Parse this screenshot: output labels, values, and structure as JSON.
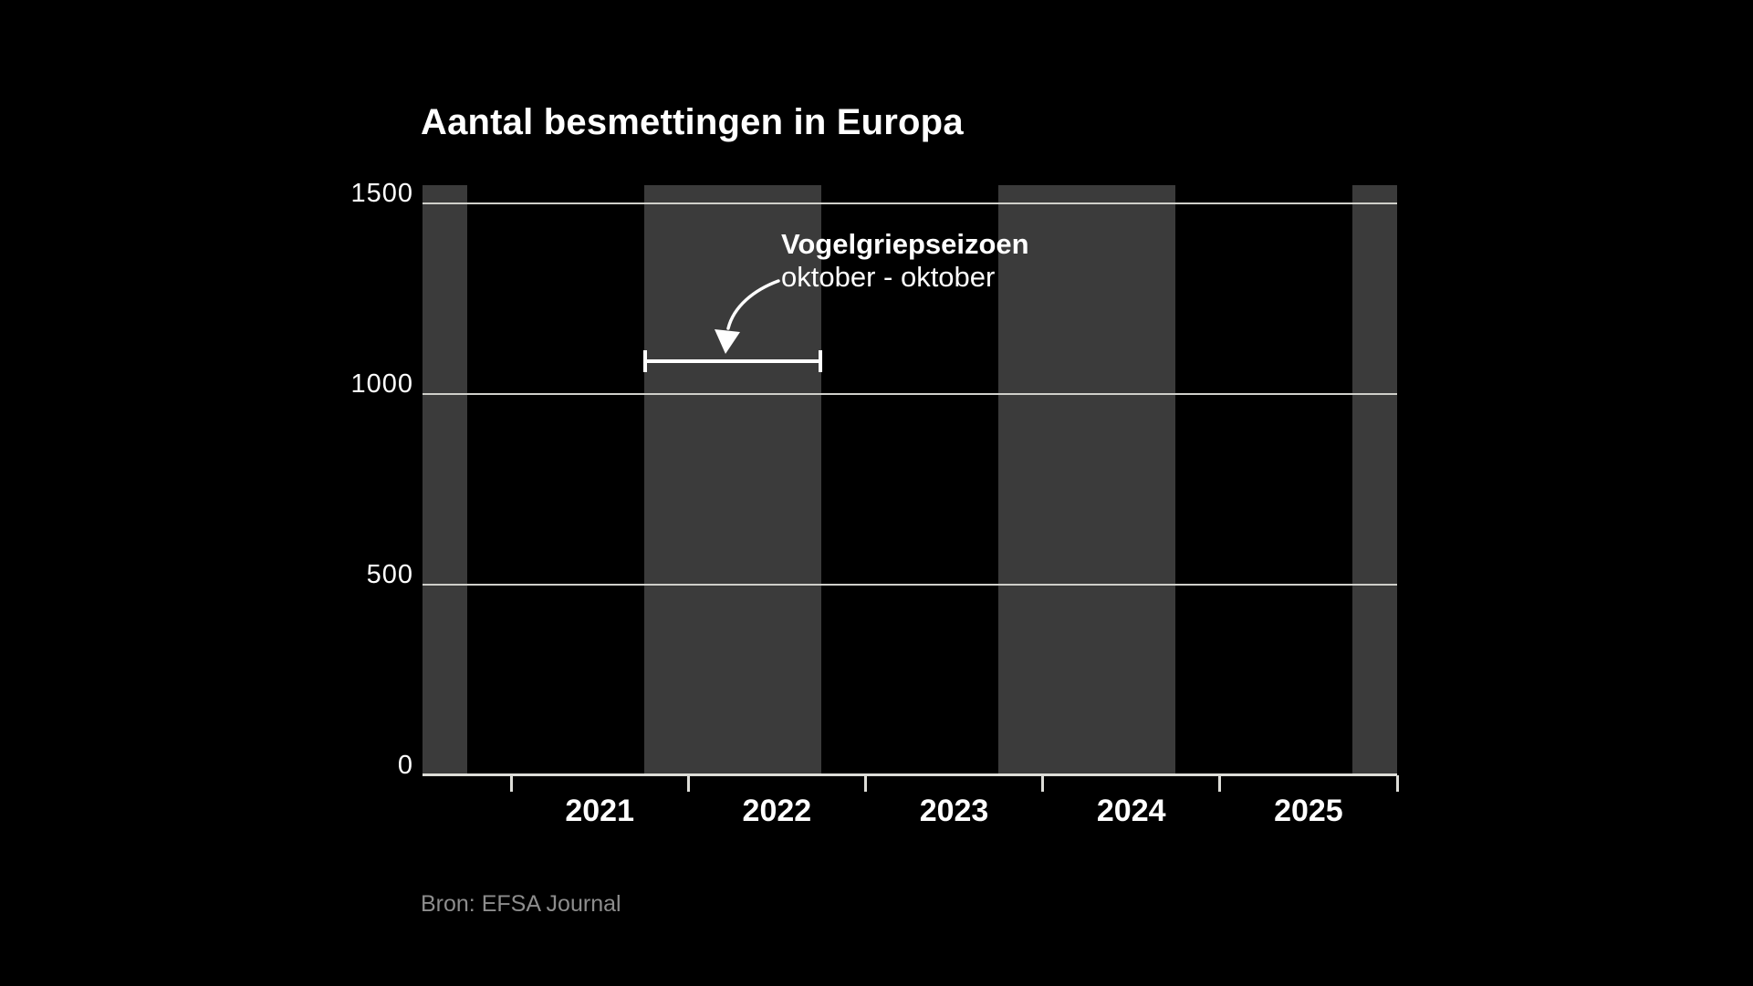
{
  "chart": {
    "title": "Aantal besmettingen in Europa",
    "annotation": {
      "title": "Vogelgriepseizoen",
      "subtitle": "oktober - oktober"
    },
    "source": "Bron: EFSA Journal",
    "colors": {
      "background": "#000000",
      "season_band": "#3b3b3b",
      "gridline": "#cfcfca",
      "axis": "#ddddd8",
      "text": "#ffffff",
      "annotation_accent": "#ffffff",
      "source_text": "#8d8d8d"
    }
  },
  "chart_data": {
    "type": "line",
    "title": "Aantal besmettingen in Europa",
    "xlabel": "",
    "ylabel": "",
    "legend": "none",
    "grid": "horizontal",
    "series": [],
    "y_axis": {
      "range": [
        0,
        1500
      ],
      "ticks": [
        0,
        500,
        1000,
        1500
      ]
    },
    "x_axis": {
      "unit": "year",
      "range": [
        2020.5,
        2026
      ],
      "boundary_ticks": [
        2021,
        2022,
        2023,
        2024,
        2025,
        2026
      ],
      "tick_labels": [
        "2021",
        "2022",
        "2023",
        "2024",
        "2025"
      ],
      "tick_label_positions": [
        2021.5,
        2022.5,
        2023.5,
        2024.5,
        2025.5
      ]
    },
    "season_bands": {
      "meaning": "Vogelgriepseizoen oktober - oktober",
      "intervals": [
        [
          2020.5,
          2020.75
        ],
        [
          2021.75,
          2022.75
        ],
        [
          2023.75,
          2024.75
        ],
        [
          2025.75,
          2026.0
        ]
      ]
    },
    "highlight_interval": {
      "x_from": 2021.75,
      "x_to": 2022.75,
      "y_value": 1085,
      "annotation_title": "Vogelgriepseizoen",
      "annotation_subtitle": "oktober - oktober"
    },
    "source": "Bron: EFSA Journal"
  }
}
